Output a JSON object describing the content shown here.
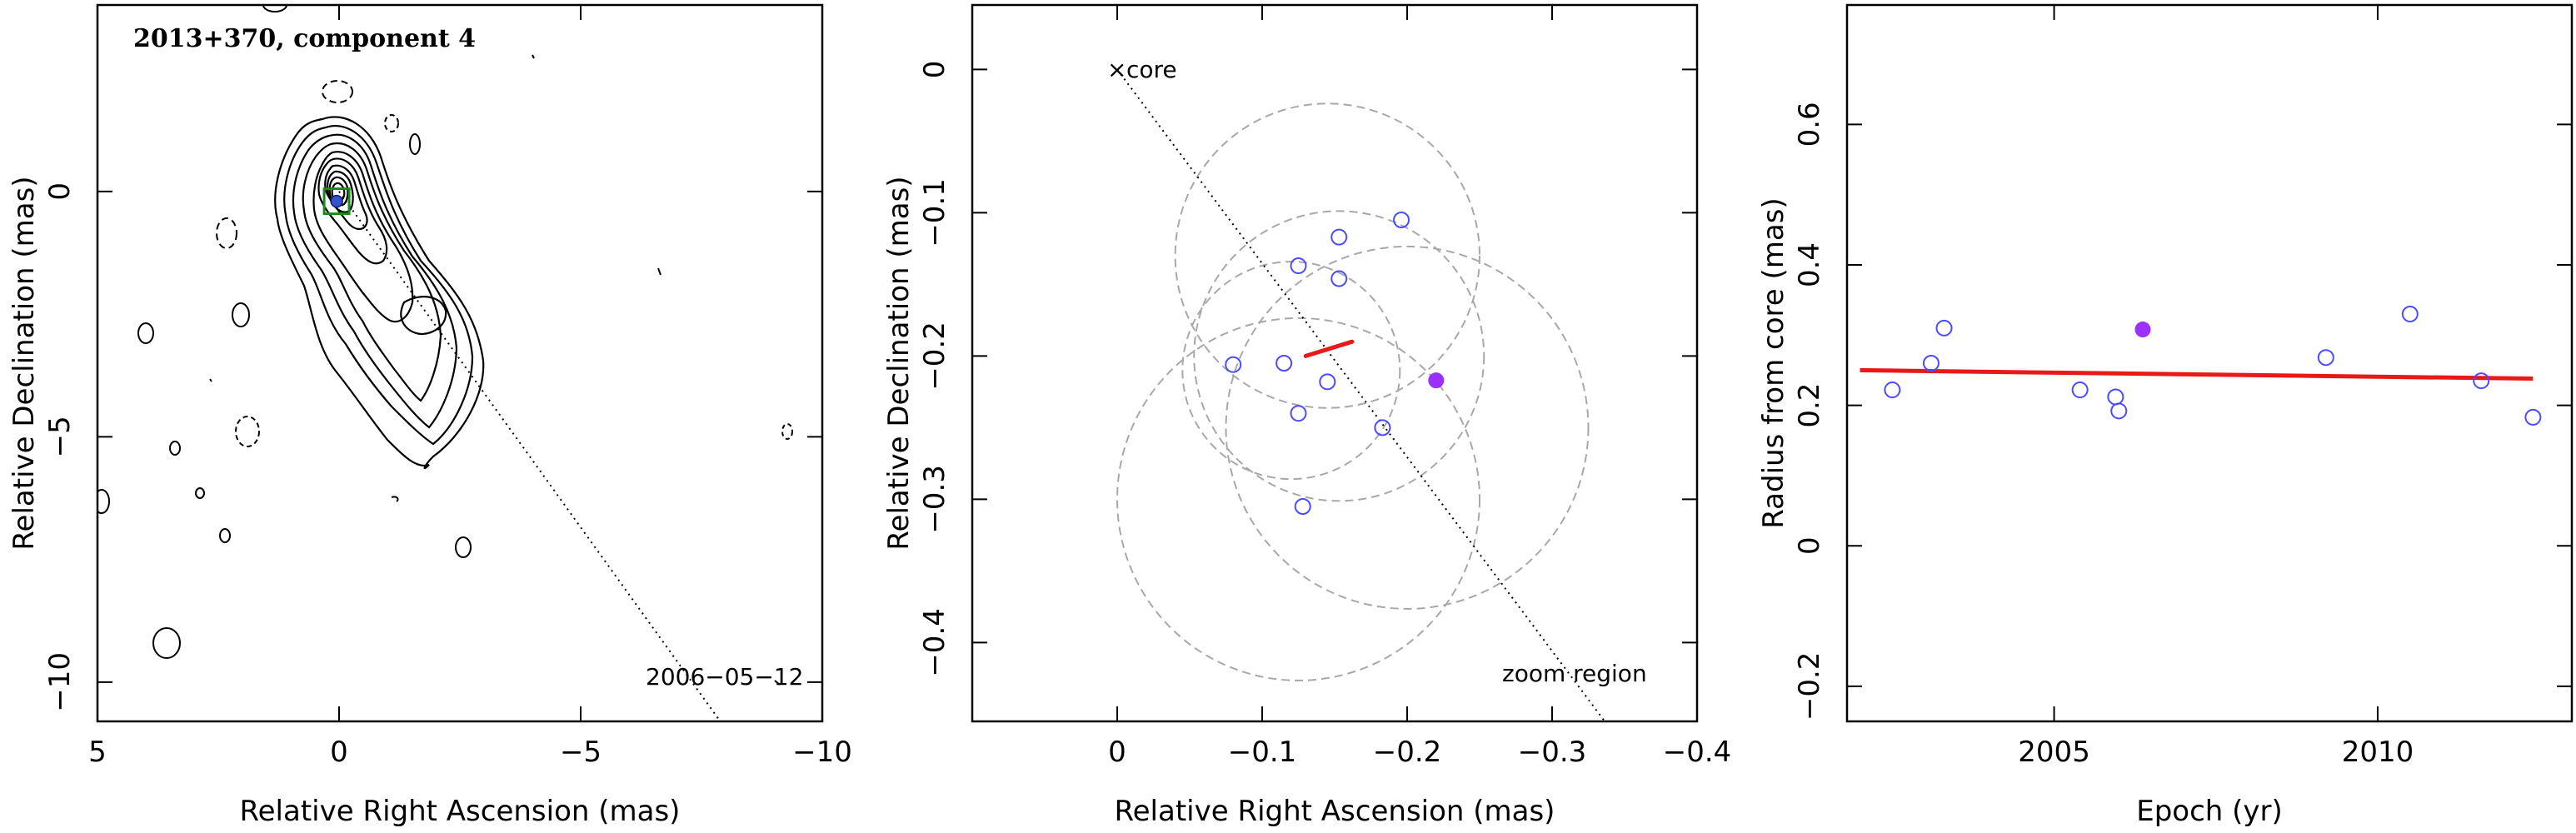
{
  "figure": {
    "panel1": {
      "title": "2013+370, component 4",
      "epoch_label": "2006−05−12",
      "xlabel": "Relative Right Ascension (mas)",
      "ylabel": "Relative Declination (mas)",
      "xlim": [
        5,
        -10
      ],
      "ylim": [
        -10.8,
        3.8
      ],
      "xticks": [
        {
          "v": 5,
          "t": "5"
        },
        {
          "v": 0,
          "t": "0"
        },
        {
          "v": -5,
          "t": "−5"
        },
        {
          "v": -10,
          "t": "−10"
        }
      ],
      "yticks": [
        {
          "v": 0,
          "t": "0"
        },
        {
          "v": -5,
          "t": "−5"
        },
        {
          "v": -10,
          "t": "−10"
        }
      ]
    },
    "panel2": {
      "core_label": "core",
      "zoom_label": "zoom region",
      "xlabel": "Relative Right Ascension (mas)",
      "ylabel": "Relative Declination (mas)",
      "xlim": [
        0.1,
        -0.4
      ],
      "ylim": [
        -0.455,
        0.045
      ],
      "xticks": [
        {
          "v": 0,
          "t": "0"
        },
        {
          "v": -0.1,
          "t": "−0.1"
        },
        {
          "v": -0.2,
          "t": "−0.2"
        },
        {
          "v": -0.3,
          "t": "−0.3"
        },
        {
          "v": -0.4,
          "t": "−0.4"
        }
      ],
      "yticks": [
        {
          "v": 0,
          "t": "0"
        },
        {
          "v": -0.1,
          "t": "−0.1"
        },
        {
          "v": -0.2,
          "t": "−0.2"
        },
        {
          "v": -0.3,
          "t": "−0.3"
        },
        {
          "v": -0.4,
          "t": "−0.4"
        }
      ]
    },
    "panel3": {
      "xlabel": "Epoch (yr)",
      "ylabel": "Radius from core (mas)",
      "xlim": [
        2001.8,
        2013
      ],
      "ylim": [
        -0.25,
        0.77
      ],
      "xticks": [
        {
          "v": 2005,
          "t": "2005"
        },
        {
          "v": 2010,
          "t": "2010"
        }
      ],
      "yticks": [
        {
          "v": -0.2,
          "t": "−0.2"
        },
        {
          "v": 0,
          "t": "0"
        },
        {
          "v": 0.2,
          "t": "0.2"
        },
        {
          "v": 0.4,
          "t": "0.4"
        },
        {
          "v": 0.6,
          "t": "0.6"
        }
      ]
    }
  },
  "colors": {
    "open_point": "#4b4bff",
    "filled_point": "#9b30ff",
    "fit_line": "#e81919",
    "circle": "#a8a8a8",
    "contour": "#000000",
    "component_box": "#1a8a1a",
    "component_marker": "#3355cc"
  },
  "chart_data": [
    {
      "type": "scatter",
      "panel": "panel1",
      "description_type": "contour-map",
      "series": [
        {
          "values": [
            {
              "x": 0.05,
              "y": -0.2
            }
          ],
          "marker": "component"
        }
      ],
      "jet_axis": [
        {
          "x": 0,
          "y": 0
        },
        {
          "x": -8.4,
          "y": -11.5
        }
      ]
    },
    {
      "type": "scatter",
      "panel": "panel2",
      "series": [
        {
          "values": [
            {
              "x": -0.08,
              "y": -0.206
            },
            {
              "x": -0.115,
              "y": -0.205
            },
            {
              "x": -0.125,
              "y": -0.24
            },
            {
              "x": -0.128,
              "y": -0.305
            },
            {
              "x": -0.125,
              "y": -0.137
            },
            {
              "x": -0.145,
              "y": -0.218
            },
            {
              "x": -0.153,
              "y": -0.146
            },
            {
              "x": -0.153,
              "y": -0.117
            },
            {
              "x": -0.183,
              "y": -0.25
            },
            {
              "x": -0.196,
              "y": -0.105
            }
          ],
          "marker": "open"
        },
        {
          "values": [
            {
              "x": -0.22,
              "y": -0.217
            }
          ],
          "marker": "filled"
        }
      ],
      "circles": [
        {
          "x": -0.145,
          "y": -0.13,
          "r": 0.105
        },
        {
          "x": -0.153,
          "y": -0.2,
          "r": 0.1
        },
        {
          "x": -0.12,
          "y": -0.21,
          "r": 0.075
        },
        {
          "x": -0.2,
          "y": -0.25,
          "r": 0.125
        },
        {
          "x": -0.125,
          "y": -0.3,
          "r": 0.125
        }
      ],
      "fit_segment": [
        {
          "x": -0.13,
          "y": -0.2
        },
        {
          "x": -0.162,
          "y": -0.19
        }
      ],
      "jet_axis": [
        {
          "x": 0,
          "y": 0
        },
        {
          "x": -0.34,
          "y": -0.46
        }
      ]
    },
    {
      "type": "scatter",
      "panel": "panel3",
      "series": [
        {
          "values": [
            {
              "x": 2002.5,
              "y": 0.222
            },
            {
              "x": 2003.1,
              "y": 0.26
            },
            {
              "x": 2003.3,
              "y": 0.31
            },
            {
              "x": 2005.4,
              "y": 0.222
            },
            {
              "x": 2005.95,
              "y": 0.212
            },
            {
              "x": 2006.0,
              "y": 0.192
            },
            {
              "x": 2009.2,
              "y": 0.268
            },
            {
              "x": 2010.5,
              "y": 0.33
            },
            {
              "x": 2011.6,
              "y": 0.235
            },
            {
              "x": 2012.4,
              "y": 0.183
            }
          ],
          "marker": "open"
        },
        {
          "values": [
            {
              "x": 2006.37,
              "y": 0.308
            }
          ],
          "marker": "filled"
        }
      ],
      "fit_line": [
        {
          "x": 2002.0,
          "y": 0.25
        },
        {
          "x": 2012.4,
          "y": 0.238
        }
      ]
    }
  ]
}
